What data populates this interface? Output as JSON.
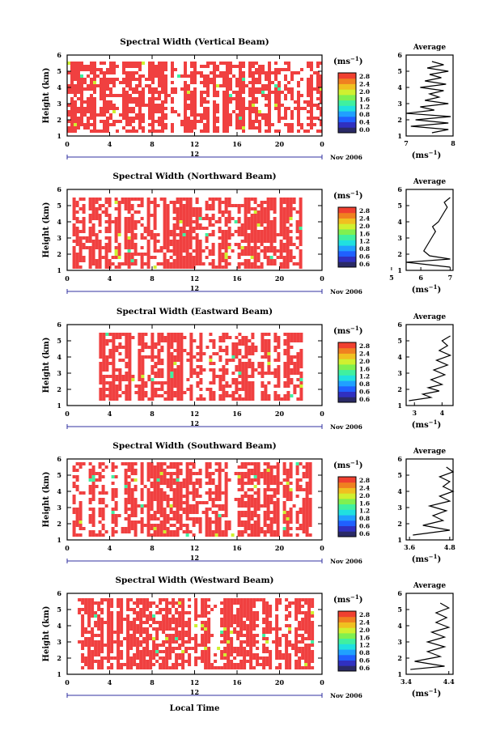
{
  "figure": {
    "xlabel": "Local Time",
    "date_label": "Nov 2006",
    "day_label": "12",
    "colorbar_unit": "(ms",
    "colorbar_unit_sup": "−1",
    "colorbar_ticks": [
      "0.0",
      "0.4",
      "0.8",
      "1.2",
      "1.6",
      "2.0",
      "2.4",
      "2.8"
    ],
    "colorbar_ticks_alt": [
      "0.6",
      "0.6",
      "0.8",
      "1.2",
      "1.6",
      "2.0",
      "2.4",
      "2.8"
    ],
    "avg_title": "Average",
    "avg_xlabel": "(ms",
    "avg_xlabel_sup": "−1",
    "ylabel": "Height (km)"
  },
  "chart_data": [
    {
      "type": "heatmap",
      "title": "Spectral Width (Vertical Beam)",
      "x_ticks": [
        "0",
        "4",
        "8",
        "12",
        "16",
        "20",
        "0"
      ],
      "xlim": [
        0,
        24
      ],
      "y_ticks": [
        "1",
        "2",
        "3",
        "4",
        "5",
        "6"
      ],
      "ylim": [
        1,
        6
      ],
      "colorbar_ticks": [
        "0.0",
        "0.4",
        "0.8",
        "1.2",
        "1.6",
        "2.0",
        "2.4",
        "2.8"
      ],
      "data_extent": {
        "x": [
          0,
          24
        ],
        "y": [
          1.2,
          5.6
        ]
      },
      "average": {
        "x_ticks": [
          "7",
          "8"
        ],
        "xlim": [
          7,
          8
        ],
        "ylim": [
          1,
          6
        ],
        "profile": [
          [
            7.55,
            1.2
          ],
          [
            7.9,
            1.4
          ],
          [
            7.1,
            1.6
          ],
          [
            7.9,
            1.8
          ],
          [
            7.2,
            2.0
          ],
          [
            7.95,
            2.2
          ],
          [
            7.0,
            2.4
          ],
          [
            7.6,
            2.6
          ],
          [
            7.3,
            2.8
          ],
          [
            7.9,
            3.0
          ],
          [
            7.4,
            3.2
          ],
          [
            7.7,
            3.4
          ],
          [
            7.5,
            3.6
          ],
          [
            7.8,
            3.8
          ],
          [
            7.3,
            4.0
          ],
          [
            7.85,
            4.2
          ],
          [
            7.4,
            4.4
          ],
          [
            7.75,
            4.6
          ],
          [
            7.5,
            4.8
          ],
          [
            7.9,
            5.0
          ],
          [
            7.45,
            5.2
          ],
          [
            7.8,
            5.4
          ],
          [
            7.55,
            5.6
          ]
        ]
      }
    },
    {
      "type": "heatmap",
      "title": "Spectral Width (Northward Beam)",
      "x_ticks": [
        "0",
        "4",
        "8",
        "12",
        "16",
        "20",
        "0"
      ],
      "xlim": [
        0,
        24
      ],
      "y_ticks": [
        "1",
        "2",
        "3",
        "4",
        "5",
        "6"
      ],
      "ylim": [
        1,
        6
      ],
      "colorbar_ticks": [
        "0.6",
        "0.6",
        "0.8",
        "1.2",
        "1.6",
        "2.0",
        "2.4",
        "2.8"
      ],
      "data_extent": {
        "x": [
          0.5,
          22
        ],
        "y": [
          1.2,
          5.5
        ]
      },
      "average": {
        "x_ticks": [
          "5",
          "6",
          "7"
        ],
        "xlim": [
          5.5,
          7.1
        ],
        "ylim": [
          1,
          6
        ],
        "profile": [
          [
            7.0,
            1.2
          ],
          [
            5.5,
            1.5
          ],
          [
            7.0,
            1.7
          ],
          [
            6.3,
            1.9
          ],
          [
            6.1,
            2.2
          ],
          [
            6.2,
            2.5
          ],
          [
            6.3,
            2.8
          ],
          [
            6.4,
            3.1
          ],
          [
            6.5,
            3.4
          ],
          [
            6.4,
            3.7
          ],
          [
            6.6,
            4.0
          ],
          [
            6.7,
            4.3
          ],
          [
            6.8,
            4.6
          ],
          [
            6.9,
            4.9
          ],
          [
            6.8,
            5.2
          ],
          [
            7.0,
            5.5
          ]
        ]
      }
    },
    {
      "type": "heatmap",
      "title": "Spectral Width (Eastward Beam)",
      "x_ticks": [
        "0",
        "4",
        "8",
        "12",
        "16",
        "20",
        "0"
      ],
      "xlim": [
        0,
        24
      ],
      "y_ticks": [
        "1",
        "2",
        "3",
        "4",
        "5",
        "6"
      ],
      "ylim": [
        1,
        6
      ],
      "colorbar_ticks": [
        "0.6",
        "0.6",
        "0.8",
        "1.2",
        "1.6",
        "2.0",
        "2.4",
        "2.8"
      ],
      "data_extent": {
        "x": [
          3,
          22
        ],
        "y": [
          1.3,
          5.5
        ]
      },
      "average": {
        "x_ticks": [
          "3",
          "4"
        ],
        "xlim": [
          2.7,
          4.4
        ],
        "ylim": [
          1,
          6
        ],
        "profile": [
          [
            2.8,
            1.3
          ],
          [
            3.6,
            1.5
          ],
          [
            3.3,
            1.7
          ],
          [
            3.9,
            1.9
          ],
          [
            3.5,
            2.1
          ],
          [
            4.0,
            2.3
          ],
          [
            3.6,
            2.6
          ],
          [
            4.1,
            2.9
          ],
          [
            3.7,
            3.2
          ],
          [
            4.2,
            3.5
          ],
          [
            3.8,
            3.8
          ],
          [
            4.3,
            4.1
          ],
          [
            3.9,
            4.4
          ],
          [
            4.2,
            4.7
          ],
          [
            4.0,
            5.0
          ],
          [
            4.3,
            5.3
          ]
        ]
      }
    },
    {
      "type": "heatmap",
      "title": "Spectral Width (Southward Beam)",
      "x_ticks": [
        "0",
        "4",
        "8",
        "12",
        "16",
        "20",
        "0"
      ],
      "xlim": [
        0,
        24
      ],
      "y_ticks": [
        "1",
        "2",
        "3",
        "4",
        "5",
        "6"
      ],
      "ylim": [
        1,
        6
      ],
      "colorbar_ticks": [
        "0.6",
        "0.6",
        "0.8",
        "1.2",
        "1.6",
        "2.0",
        "2.4",
        "2.8"
      ],
      "data_extent": {
        "x": [
          0.5,
          23
        ],
        "y": [
          1.3,
          5.8
        ]
      },
      "average": {
        "x_ticks": [
          "3.6",
          "4.8"
        ],
        "xlim": [
          3.5,
          4.9
        ],
        "ylim": [
          1,
          6
        ],
        "profile": [
          [
            3.7,
            1.3
          ],
          [
            4.8,
            1.6
          ],
          [
            4.0,
            1.9
          ],
          [
            4.6,
            2.2
          ],
          [
            4.3,
            2.5
          ],
          [
            4.7,
            2.8
          ],
          [
            4.2,
            3.1
          ],
          [
            4.8,
            3.4
          ],
          [
            4.5,
            3.7
          ],
          [
            4.9,
            4.0
          ],
          [
            4.6,
            4.3
          ],
          [
            4.8,
            4.6
          ],
          [
            4.5,
            4.9
          ],
          [
            4.9,
            5.2
          ],
          [
            4.7,
            5.5
          ]
        ]
      }
    },
    {
      "type": "heatmap",
      "title": "Spectral Width (Westward Beam)",
      "x_ticks": [
        "0",
        "4",
        "8",
        "12",
        "16",
        "20",
        "0"
      ],
      "xlim": [
        0,
        24
      ],
      "y_ticks": [
        "1",
        "2",
        "3",
        "4",
        "5",
        "6"
      ],
      "ylim": [
        1,
        6
      ],
      "colorbar_ticks": [
        "0.6",
        "0.6",
        "0.8",
        "1.2",
        "1.6",
        "2.0",
        "2.4",
        "2.8"
      ],
      "data_extent": {
        "x": [
          1,
          23
        ],
        "y": [
          1.3,
          5.7
        ]
      },
      "average": {
        "x_ticks": [
          "3.4",
          "4.4"
        ],
        "xlim": [
          3.4,
          4.5
        ],
        "ylim": [
          1,
          6
        ],
        "profile": [
          [
            3.5,
            1.3
          ],
          [
            4.3,
            1.5
          ],
          [
            3.6,
            1.8
          ],
          [
            4.2,
            2.1
          ],
          [
            3.9,
            2.4
          ],
          [
            4.3,
            2.7
          ],
          [
            3.9,
            3.0
          ],
          [
            4.3,
            3.3
          ],
          [
            4.0,
            3.6
          ],
          [
            4.4,
            3.9
          ],
          [
            4.1,
            4.2
          ],
          [
            4.35,
            4.5
          ],
          [
            4.1,
            4.8
          ],
          [
            4.4,
            5.1
          ],
          [
            4.2,
            5.4
          ]
        ]
      }
    }
  ],
  "colors": {
    "fill": "#f04040",
    "colorbar": [
      "#2a2a66",
      "#3030c0",
      "#2060ff",
      "#20a0ff",
      "#20e0e0",
      "#40f0a0",
      "#80f050",
      "#d0f030",
      "#f0c020",
      "#f08020",
      "#f04030"
    ]
  }
}
